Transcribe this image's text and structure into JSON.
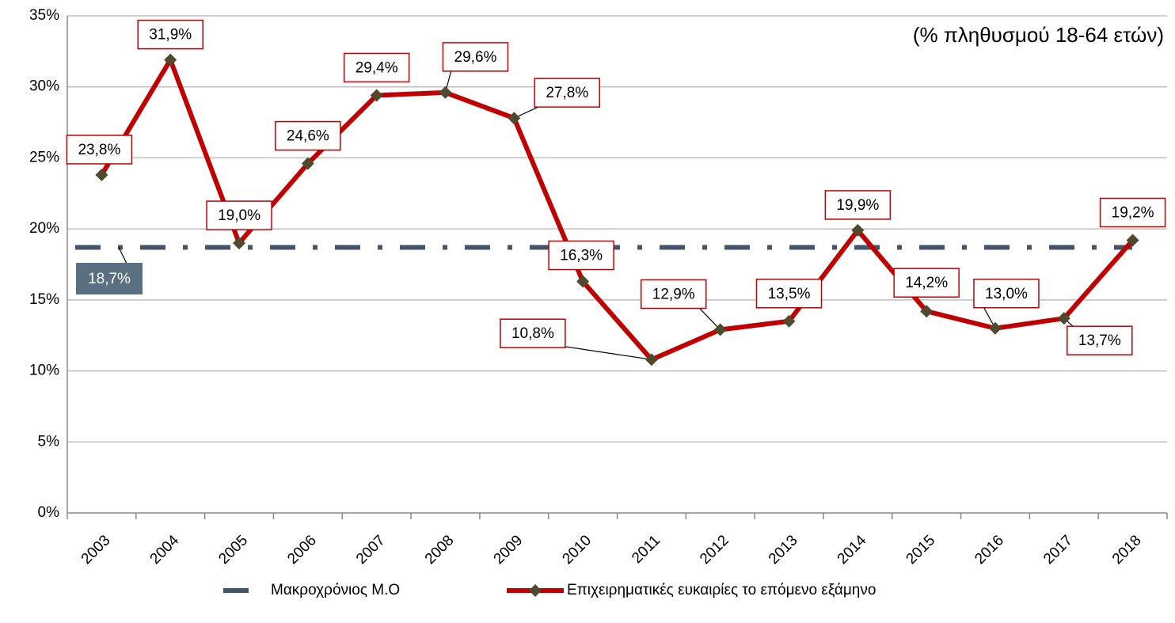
{
  "chart_data": {
    "type": "line",
    "annotation": "(% πληθυσμού 18-64 ετών)",
    "categories": [
      "2003",
      "2004",
      "2005",
      "2006",
      "2007",
      "2008",
      "2009",
      "2010",
      "2011",
      "2012",
      "2013",
      "2014",
      "2015",
      "2016",
      "2017",
      "2018"
    ],
    "series": [
      {
        "name": "Επιχειρηματικές ευκαιρίες το επόμενο εξάμηνο",
        "color": "#c00000",
        "marker_color": "#4f4a2e",
        "values": [
          23.8,
          31.9,
          19.0,
          24.6,
          29.4,
          29.6,
          27.8,
          16.3,
          10.8,
          12.9,
          13.5,
          19.9,
          14.2,
          13.0,
          13.7,
          19.2
        ],
        "value_labels": [
          "23,8%",
          "31,9%",
          "19,0%",
          "24,6%",
          "29,4%",
          "29,6%",
          "27,8%",
          "16,3%",
          "10,8%",
          "12,9%",
          "13,5%",
          "19,9%",
          "14,2%",
          "13,0%",
          "13,7%",
          "19,2%"
        ]
      }
    ],
    "average": {
      "name": "Μακροχρόνιος Μ.Ο",
      "color": "#44546a",
      "label_color": "#5a7080",
      "value": 18.7,
      "value_label": "18,7%"
    },
    "ylim": [
      0,
      35
    ],
    "yticks": [
      {
        "value": 0,
        "label": "0%"
      },
      {
        "value": 5,
        "label": "5%"
      },
      {
        "value": 10,
        "label": "10%"
      },
      {
        "value": 15,
        "label": "15%"
      },
      {
        "value": 20,
        "label": "20%"
      },
      {
        "value": 25,
        "label": "25%"
      },
      {
        "value": 30,
        "label": "30%"
      },
      {
        "value": 35,
        "label": "35%"
      }
    ],
    "grid": true
  }
}
